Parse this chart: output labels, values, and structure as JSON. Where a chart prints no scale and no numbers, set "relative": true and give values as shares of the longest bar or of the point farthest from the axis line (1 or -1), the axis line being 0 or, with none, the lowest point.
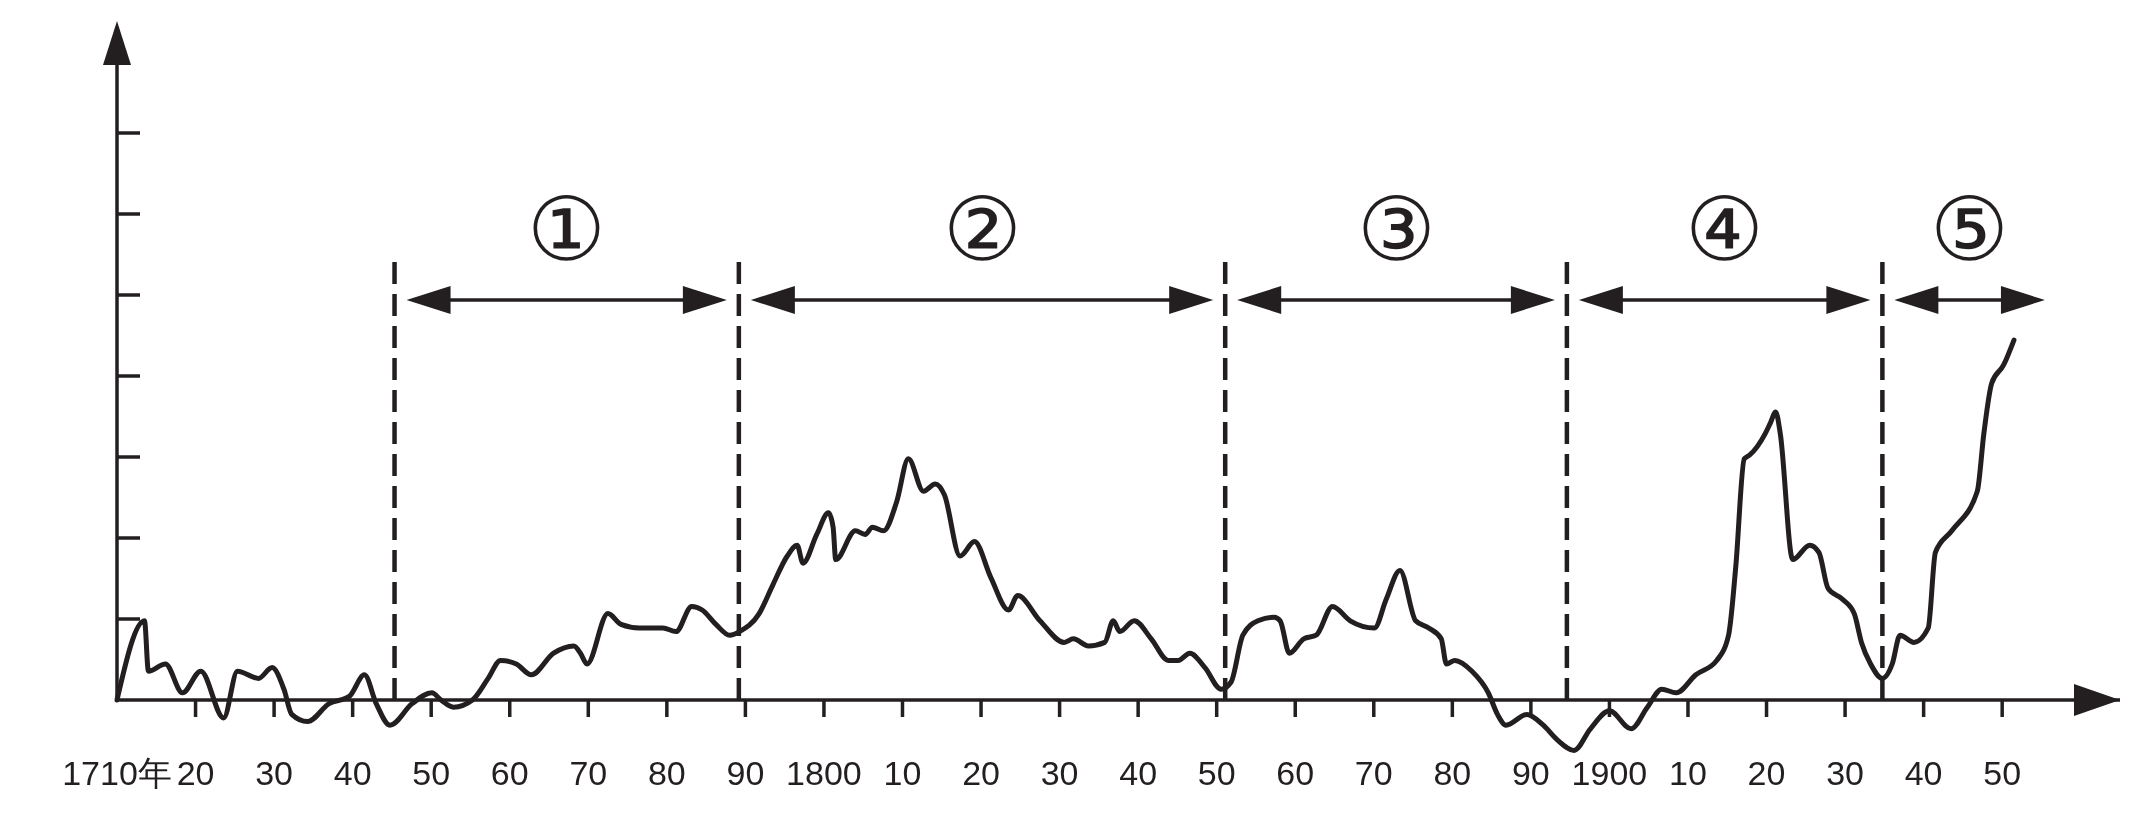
{
  "chart_data": {
    "type": "line",
    "relative": true,
    "color": "#231f20",
    "x": [
      "1710-01",
      "1713-07",
      "1714-01",
      "1716-03",
      "1718-05",
      "1720-09",
      "1723-08",
      "1725-05",
      "1728-01",
      "1729-10",
      "1731-04",
      "1732-04",
      "1734-04",
      "1737-01",
      "1739-08",
      "1741-07",
      "1743-01",
      "1744-10",
      "1747-08",
      "1750-02",
      "1751-04",
      "1752-11",
      "1755-04",
      "1757-04",
      "1758-11",
      "1760-11",
      "1762-10",
      "1765-08",
      "1768-03",
      "1769-01",
      "1769-11",
      "1772-07",
      "1774-03",
      "1776-07",
      "1779-07",
      "1781-03",
      "1783-03",
      "1784-07",
      "1786-04",
      "1788-01",
      "1789-04",
      "1791-10",
      "1793-07",
      "1795-05",
      "1796-08",
      "1797-05",
      "1799-02",
      "1800-08",
      "1801-03",
      "1801-07",
      "1804-01",
      "1805-04",
      "1806-03",
      "1807-08",
      "1809-04",
      "1810-10",
      "1812-09",
      "1814-03",
      "1815-05",
      "1817-05",
      "1819-03",
      "1821-04",
      "1823-07",
      "1824-09",
      "1827-07",
      "1830-08",
      "1831-10",
      "1833-09",
      "1835-10",
      "1836-11",
      "1837-09",
      "1839-07",
      "1841-09",
      "1843-11",
      "1845-02",
      "1846-08",
      "1848-07",
      "1850-08",
      "1851-11",
      "1853-05",
      "1855-04",
      "1857-05",
      "1858-02",
      "1859-04",
      "1861-02",
      "1862-09",
      "1864-10",
      "1867-01",
      "1870-02",
      "1871-08",
      "1873-05",
      "1875-05",
      "1877-01",
      "1878-08",
      "1879-04",
      "1880-05",
      "1882-07",
      "1884-08",
      "1885-10",
      "1886-11",
      "1889-07",
      "1891-08",
      "1893-05",
      "1895-07",
      "1897-08",
      "1900-01",
      "1902-10",
      "1904-11",
      "1906-09",
      "1908-07",
      "1911-01",
      "1913-09",
      "1915-03",
      "1916-02",
      "1917-03",
      "1917-11",
      "1919-11",
      "1920-07",
      "1921-03",
      "1921-10",
      "1923-05",
      "1925-07",
      "1926-09",
      "1927-11",
      "1929-09",
      "1931-03",
      "1932-02",
      "1933-04",
      "1934-10",
      "1936-01",
      "1937-01",
      "1938-10",
      "1940-08",
      "1941-07",
      "1943-08",
      "1946-11",
      "1947-09",
      "1948-09",
      "1950-03",
      "1951-07"
    ],
    "values": [
      0,
      0.22,
      0.08,
      0.1,
      0.02,
      0.08,
      -0.05,
      0.08,
      0.06,
      0.09,
      0.03,
      -0.04,
      -0.06,
      -0.01,
      0.01,
      0.07,
      -0.01,
      -0.07,
      -0.01,
      0.02,
      0,
      -0.02,
      0,
      0.06,
      0.11,
      0.1,
      0.07,
      0.13,
      0.15,
      0.13,
      0.1,
      0.24,
      0.21,
      0.2,
      0.2,
      0.19,
      0.26,
      0.25,
      0.21,
      0.18,
      0.19,
      0.24,
      0.32,
      0.4,
      0.43,
      0.38,
      0.46,
      0.52,
      0.48,
      0.39,
      0.47,
      0.46,
      0.48,
      0.47,
      0.55,
      0.67,
      0.58,
      0.6,
      0.57,
      0.4,
      0.44,
      0.34,
      0.25,
      0.29,
      0.22,
      0.16,
      0.17,
      0.15,
      0.16,
      0.22,
      0.19,
      0.22,
      0.17,
      0.11,
      0.11,
      0.13,
      0.09,
      0.03,
      0.05,
      0.18,
      0.22,
      0.23,
      0.22,
      0.13,
      0.17,
      0.18,
      0.26,
      0.22,
      0.2,
      0.28,
      0.36,
      0.22,
      0.2,
      0.17,
      0.1,
      0.11,
      0.08,
      0.02,
      -0.04,
      -0.07,
      -0.04,
      -0.07,
      -0.11,
      -0.14,
      -0.08,
      -0.03,
      -0.08,
      -0.02,
      0.03,
      0.02,
      0.07,
      0.11,
      0.18,
      0.37,
      0.67,
      0.68,
      0.74,
      0.77,
      0.8,
      0.74,
      0.39,
      0.43,
      0.41,
      0.31,
      0.28,
      0.24,
      0.16,
      0.1,
      0.06,
      0.1,
      0.18,
      0.16,
      0.2,
      0.41,
      0.47,
      0.58,
      0.74,
      0.88,
      0.93,
      1
    ],
    "xlim": [
      "1710",
      "1965"
    ],
    "xticks": [
      {
        "value": "1710",
        "label": "1710年"
      },
      {
        "value": "1720",
        "label": "20"
      },
      {
        "value": "1730",
        "label": "30"
      },
      {
        "value": "1740",
        "label": "40"
      },
      {
        "value": "1750",
        "label": "50"
      },
      {
        "value": "1760",
        "label": "60"
      },
      {
        "value": "1770",
        "label": "70"
      },
      {
        "value": "1780",
        "label": "80"
      },
      {
        "value": "1790",
        "label": "90"
      },
      "1800",
      {
        "value": "1810",
        "label": "10"
      },
      {
        "value": "1820",
        "label": "20"
      },
      {
        "value": "1830",
        "label": "30"
      },
      {
        "value": "1840",
        "label": "40"
      },
      {
        "value": "1850",
        "label": "50"
      },
      {
        "value": "1860",
        "label": "60"
      },
      {
        "value": "1870",
        "label": "70"
      },
      {
        "value": "1880",
        "label": "80"
      },
      {
        "value": "1890",
        "label": "90"
      },
      "1900",
      {
        "value": "1910",
        "label": "10"
      },
      {
        "value": "1920",
        "label": "20"
      },
      {
        "value": "1930",
        "label": "30"
      },
      {
        "value": "1940",
        "label": "40"
      },
      {
        "value": "1950",
        "label": "50"
      }
    ],
    "ref_lines": [
      {
        "axis": "x",
        "value": "1745-05",
        "color": "#231f20",
        "line_style": "dashed"
      },
      {
        "axis": "x",
        "value": "1789-03",
        "color": "#231f20",
        "line_style": "dashed"
      },
      {
        "axis": "x",
        "value": "1851-02",
        "color": "#231f20",
        "line_style": "dashed"
      },
      {
        "axis": "x",
        "value": "1894-08",
        "color": "#231f20",
        "line_style": "dashed"
      },
      {
        "axis": "x",
        "value": "1934-10",
        "color": "#231f20",
        "line_style": "dashed"
      }
    ],
    "annotations": [
      "①",
      "②",
      "③",
      "④",
      "⑤"
    ]
  }
}
